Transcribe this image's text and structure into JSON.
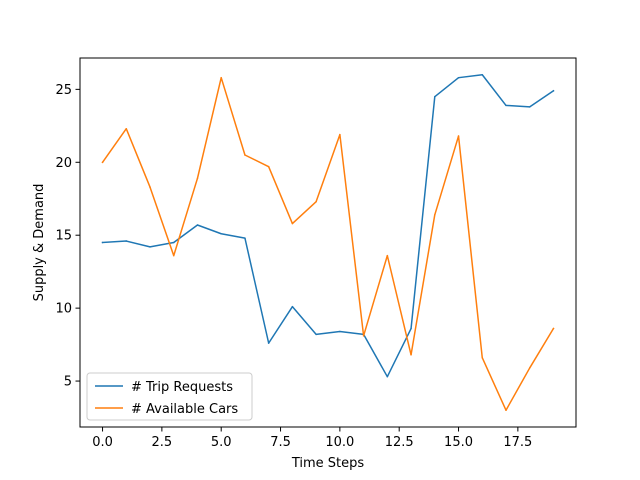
{
  "chart_data": {
    "type": "line",
    "title": "",
    "xlabel": "Time Steps",
    "ylabel": "Supply & Demand",
    "xlim": [
      -0.95,
      19.95
    ],
    "ylim": [
      1.85,
      27.15
    ],
    "xticks": [
      0.0,
      2.5,
      5.0,
      7.5,
      10.0,
      12.5,
      15.0,
      17.5
    ],
    "xtick_labels": [
      "0.0",
      "2.5",
      "5.0",
      "7.5",
      "10.0",
      "12.5",
      "15.0",
      "17.5"
    ],
    "yticks": [
      5,
      10,
      15,
      20,
      25
    ],
    "ytick_labels": [
      "5",
      "10",
      "15",
      "20",
      "25"
    ],
    "grid": false,
    "legend_position": "bottom-left",
    "x": [
      0,
      1,
      2,
      3,
      4,
      5,
      6,
      7,
      8,
      9,
      10,
      11,
      12,
      13,
      14,
      15,
      16,
      17,
      18,
      19
    ],
    "series": [
      {
        "name": "# Trip Requests",
        "color": "#1f77b4",
        "values": [
          14.5,
          14.6,
          14.2,
          14.5,
          15.7,
          15.1,
          14.8,
          7.6,
          10.1,
          8.2,
          8.4,
          8.2,
          5.3,
          8.6,
          24.5,
          25.8,
          26.0,
          23.9,
          23.8,
          24.9
        ]
      },
      {
        "name": "# Available Cars",
        "color": "#ff7f0e",
        "values": [
          20.0,
          22.3,
          18.3,
          13.6,
          18.9,
          25.8,
          20.5,
          19.7,
          15.8,
          17.3,
          21.9,
          8.1,
          13.6,
          6.8,
          16.4,
          21.8,
          6.6,
          3.0,
          5.9,
          8.6
        ]
      }
    ]
  }
}
